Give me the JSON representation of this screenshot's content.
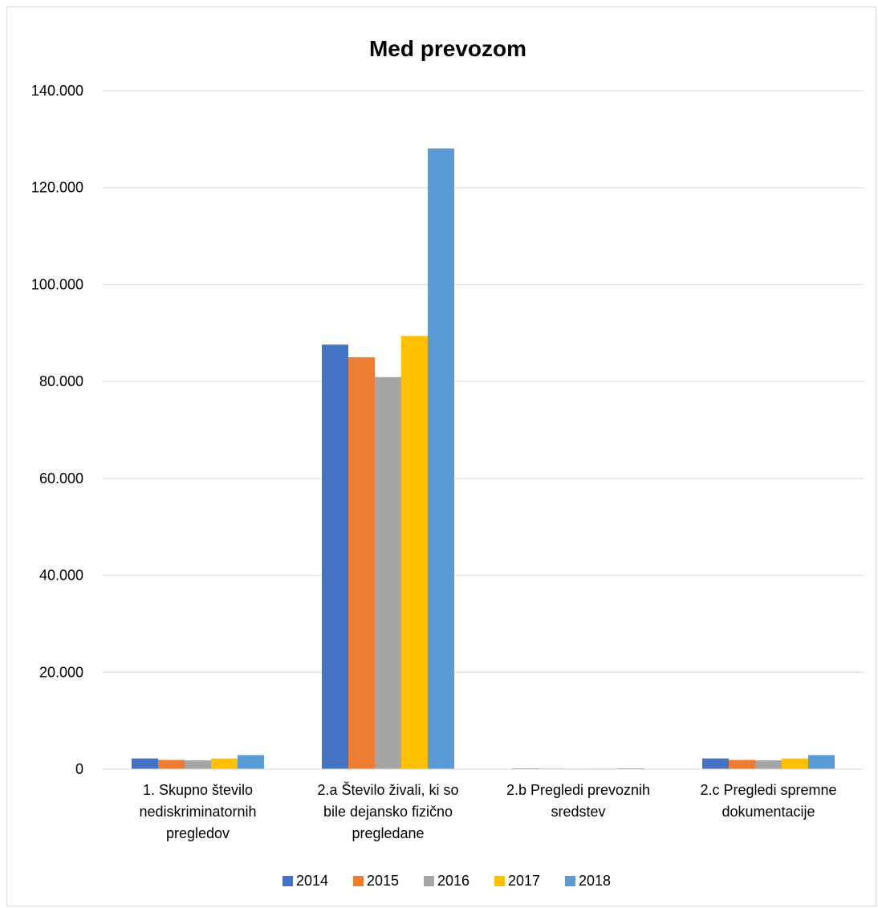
{
  "chart_data": {
    "type": "bar",
    "title": "Med prevozom",
    "xlabel": "",
    "ylabel": "",
    "ylim": [
      0,
      140000
    ],
    "y_ticks": [
      "0",
      "20.000",
      "40.000",
      "60.000",
      "80.000",
      "100.000",
      "120.000",
      "140.000"
    ],
    "grid": true,
    "legend_position": "bottom",
    "categories": [
      [
        "1.   Skupno število",
        "nediskriminatornih",
        "pregledov"
      ],
      [
        "2.a Število živali, ki so",
        "bile dejansko fizično",
        "pregledane"
      ],
      [
        "2.b Pregledi prevoznih",
        "sredstev"
      ],
      [
        "2.c Pregledi spremne",
        "dokumentacije"
      ]
    ],
    "series": [
      {
        "name": "2014",
        "color": "#4472c4",
        "values": [
          2200,
          87600,
          150,
          2200
        ]
      },
      {
        "name": "2015",
        "color": "#ed7d31",
        "values": [
          1900,
          85000,
          120,
          1900
        ]
      },
      {
        "name": "2016",
        "color": "#a5a5a5",
        "values": [
          1800,
          80900,
          110,
          1800
        ]
      },
      {
        "name": "2017",
        "color": "#ffc000",
        "values": [
          2200,
          89400,
          130,
          2200
        ]
      },
      {
        "name": "2018",
        "color": "#5b9bd5",
        "values": [
          2900,
          128100,
          170,
          2900
        ]
      }
    ]
  }
}
